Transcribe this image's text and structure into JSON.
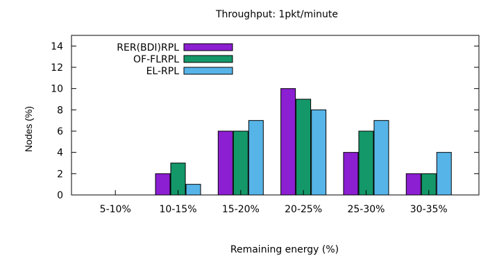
{
  "chart_data": {
    "type": "bar",
    "title": "Throughput: 1pkt/minute",
    "xlabel": "Remaining energy (%)",
    "ylabel": "Nodes (%)",
    "ylim": [
      0,
      15
    ],
    "yticks": [
      0,
      2,
      4,
      6,
      8,
      10,
      12,
      14
    ],
    "categories": [
      "5-10%",
      "10-15%",
      "15-20%",
      "20-25%",
      "25-30%",
      "30-35%"
    ],
    "series": [
      {
        "name": "RER(BDI)RPL",
        "color": "#8b1fd1",
        "values": [
          0,
          2,
          6,
          10,
          4,
          2
        ]
      },
      {
        "name": "OF-FLRPL",
        "color": "#14986a",
        "values": [
          0,
          3,
          6,
          9,
          6,
          2
        ]
      },
      {
        "name": "EL-RPL",
        "color": "#57b4e8",
        "values": [
          0,
          1,
          7,
          8,
          7,
          4
        ]
      }
    ],
    "legend_position": "top-left",
    "grid": false
  }
}
